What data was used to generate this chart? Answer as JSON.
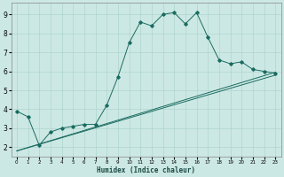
{
  "xlabel": "Humidex (Indice chaleur)",
  "xlim": [
    -0.5,
    23.5
  ],
  "ylim": [
    1.5,
    9.6
  ],
  "xticks": [
    0,
    1,
    2,
    3,
    4,
    5,
    6,
    7,
    8,
    9,
    10,
    11,
    12,
    13,
    14,
    15,
    16,
    17,
    18,
    19,
    20,
    21,
    22,
    23
  ],
  "yticks": [
    2,
    3,
    4,
    5,
    6,
    7,
    8,
    9
  ],
  "bg_color": "#cce8e4",
  "line_color": "#1a6b60",
  "grid_color": "#aed4cf",
  "curve1_x": [
    0,
    1,
    2,
    3,
    4,
    5,
    6,
    7,
    8,
    9,
    10,
    11,
    12,
    13,
    14,
    15,
    16,
    17,
    18,
    19,
    20,
    21,
    22,
    23
  ],
  "curve1_y": [
    3.9,
    3.6,
    2.1,
    2.8,
    3.0,
    3.1,
    3.2,
    3.2,
    4.2,
    5.7,
    7.5,
    8.6,
    8.4,
    9.0,
    9.1,
    8.5,
    9.1,
    7.8,
    6.6,
    6.4,
    6.5,
    6.1,
    6.0,
    5.9
  ],
  "line2_x": [
    0,
    23
  ],
  "line2_y": [
    1.8,
    5.8
  ],
  "line3_x": [
    0,
    23
  ],
  "line3_y": [
    1.8,
    5.95
  ],
  "marker_style": "D",
  "marker_size": 1.8,
  "line_width": 0.7,
  "tick_fontsize_x": 4.0,
  "tick_fontsize_y": 5.5,
  "xlabel_fontsize": 5.5
}
